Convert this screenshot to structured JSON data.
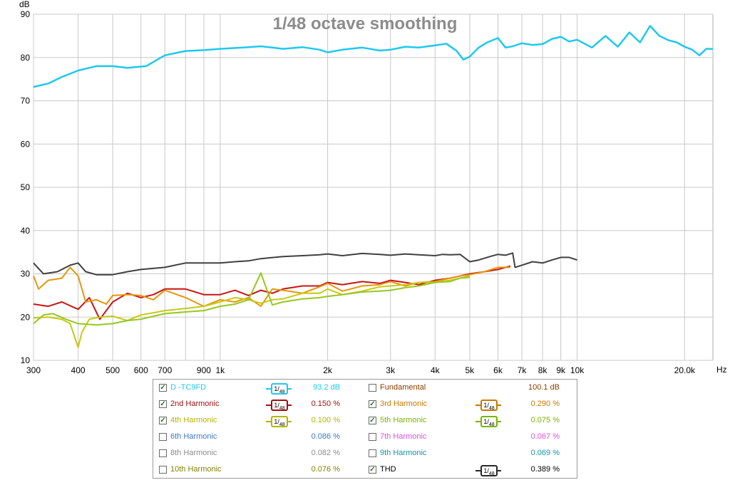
{
  "chart_data": {
    "type": "line",
    "title": "1/48 octave smoothing",
    "xlabel": "Hz",
    "ylabel": "dB",
    "xscale": "log",
    "xlim": [
      300,
      24000
    ],
    "ylim": [
      10,
      90
    ],
    "grid": true,
    "x_tick_labels": [
      "300",
      "400",
      "500",
      "600",
      "700",
      "900",
      "1k",
      "2k",
      "3k",
      "4k",
      "5k",
      "6k",
      "7k",
      "8k",
      "9k",
      "10k",
      "20.0k"
    ],
    "y_tick_labels": [
      "10",
      "20",
      "30",
      "40",
      "50",
      "60",
      "70",
      "80",
      "90"
    ],
    "series": [
      {
        "name": "D -TC9FD",
        "color": "#1ec8f0",
        "x": [
          300,
          330,
          360,
          400,
          450,
          500,
          550,
          620,
          700,
          800,
          900,
          1000,
          1100,
          1200,
          1300,
          1400,
          1500,
          1700,
          1900,
          2000,
          2200,
          2500,
          2800,
          3000,
          3300,
          3600,
          4000,
          4300,
          4600,
          4800,
          5000,
          5300,
          5600,
          6000,
          6300,
          6600,
          7000,
          7500,
          8000,
          8500,
          9000,
          9500,
          10000,
          11000,
          12000,
          13000,
          14000,
          15000,
          16000,
          17000,
          18000,
          19000,
          20000,
          21000,
          22000,
          23000,
          24000
        ],
        "values": [
          73.2,
          74,
          75.5,
          77,
          78,
          78,
          77.6,
          78,
          80.5,
          81.5,
          81.7,
          82,
          82.2,
          82.4,
          82.6,
          82.3,
          82,
          82.4,
          81.8,
          81.2,
          81.8,
          82.3,
          81.6,
          81.8,
          82.5,
          82.3,
          82.8,
          83.2,
          81.5,
          79.5,
          80.2,
          82.3,
          83.5,
          84.5,
          82.3,
          82.6,
          83.3,
          82.9,
          83.1,
          84.3,
          84.8,
          83.7,
          84.1,
          82.3,
          85,
          82.5,
          85.8,
          83.5,
          87.3,
          85,
          84,
          83.5,
          82.5,
          81.8,
          80.5,
          82,
          82
        ]
      },
      {
        "name": "THD",
        "color": "#404040",
        "x": [
          300,
          320,
          350,
          380,
          400,
          420,
          450,
          500,
          550,
          600,
          700,
          800,
          900,
          1000,
          1100,
          1200,
          1300,
          1500,
          1700,
          1900,
          2000,
          2200,
          2500,
          2800,
          3000,
          3300,
          3600,
          4000,
          4200,
          4400,
          4700,
          5000,
          5300,
          5700,
          6000,
          6300,
          6600,
          6700,
          7000,
          7500,
          8000,
          8500,
          9000,
          9500,
          10000
        ],
        "values": [
          32.5,
          30,
          30.5,
          32,
          32.5,
          30.5,
          29.8,
          29.8,
          30.5,
          31,
          31.5,
          32.5,
          32.5,
          32.5,
          32.8,
          33,
          33.5,
          34,
          34.2,
          34.4,
          34.6,
          34.2,
          34.7,
          34.5,
          34.3,
          34.6,
          34.4,
          34.2,
          34.5,
          34.4,
          34.5,
          32.8,
          33.2,
          34,
          34.5,
          34.3,
          34.8,
          31.5,
          32,
          32.8,
          32.5,
          33.2,
          33.8,
          33.8,
          33.2
        ]
      },
      {
        "name": "2nd Harmonic",
        "color": "#c81414",
        "x": [
          300,
          330,
          360,
          400,
          430,
          460,
          500,
          550,
          600,
          650,
          700,
          800,
          900,
          1000,
          1100,
          1200,
          1300,
          1400,
          1500,
          1700,
          1900,
          2000,
          2200,
          2500,
          2800,
          3000,
          3300,
          3600,
          4000,
          4400,
          4700,
          5000,
          5500,
          6000,
          6500
        ],
        "values": [
          23,
          22.5,
          23.5,
          21.8,
          24.5,
          19.5,
          23.5,
          25.5,
          24.5,
          25.2,
          26.5,
          26.5,
          25.2,
          25.2,
          26.2,
          25,
          26.2,
          25.5,
          26.5,
          27.2,
          27.2,
          28,
          27.5,
          28.2,
          27.8,
          28.5,
          28,
          27.5,
          28.5,
          29,
          29.5,
          30,
          30.5,
          31,
          31.8
        ]
      },
      {
        "name": "3rd Harmonic",
        "color": "#e6960a",
        "x": [
          300,
          310,
          330,
          360,
          380,
          400,
          420,
          450,
          480,
          500,
          550,
          600,
          650,
          700,
          800,
          900,
          1000,
          1100,
          1200,
          1300,
          1400,
          1500,
          1700,
          1900,
          2000,
          2200,
          2500,
          2800,
          3000,
          3300,
          3600,
          4000,
          4400,
          4700,
          5000,
          5500,
          6000,
          6500
        ],
        "values": [
          29.5,
          26.5,
          28.5,
          29,
          31.5,
          29.5,
          23.5,
          24,
          23,
          25,
          25.2,
          25,
          24,
          26.2,
          24.5,
          22.5,
          24,
          23.5,
          24.5,
          22.5,
          26.5,
          26.2,
          25.5,
          27,
          27.8,
          26,
          27.2,
          27.5,
          28.2,
          27.2,
          28,
          28.2,
          29,
          29.5,
          29.8,
          30.5,
          31.5,
          31.5
        ]
      },
      {
        "name": "4th Harmonic",
        "color": "#c8c814",
        "x": [
          300,
          330,
          360,
          380,
          400,
          410,
          430,
          460,
          500,
          550,
          600,
          650,
          700,
          800,
          900,
          1000,
          1100,
          1200,
          1300,
          1400,
          1500,
          1700,
          1900,
          2000,
          2200,
          2500,
          2800,
          3000,
          3300,
          3600,
          4000,
          4400,
          4700,
          5000
        ],
        "values": [
          19.8,
          20,
          19.5,
          18.5,
          13,
          16.5,
          19.5,
          20,
          20.2,
          19.2,
          20.5,
          21,
          21.5,
          22,
          22.5,
          23.5,
          24.5,
          24,
          23.2,
          24,
          24.2,
          25.5,
          25.5,
          26.5,
          25.2,
          26,
          27,
          27.2,
          27.5,
          28,
          28,
          28.5,
          29,
          29.5
        ]
      },
      {
        "name": "5th Harmonic",
        "color": "#96c81e",
        "x": [
          300,
          320,
          340,
          370,
          400,
          450,
          500,
          550,
          600,
          650,
          700,
          800,
          900,
          1000,
          1100,
          1200,
          1300,
          1400,
          1500,
          1700,
          1900,
          2000,
          2200,
          2500,
          2800,
          3000,
          3300,
          3600,
          4000,
          4400,
          4700,
          5000
        ],
        "values": [
          18.5,
          20.5,
          20.8,
          19.5,
          18.5,
          18.2,
          18.5,
          19.2,
          19.5,
          20.2,
          20.8,
          21.2,
          21.5,
          22.5,
          23,
          24,
          30.2,
          22.8,
          23.5,
          24.2,
          24.5,
          24.8,
          25.2,
          25.8,
          26,
          26.2,
          26.8,
          27.2,
          28,
          28.2,
          29,
          29.2
        ]
      }
    ]
  },
  "axis": {
    "y_unit": "dB",
    "x_unit": "Hz"
  },
  "legend": {
    "smoothing_label_num": "1/",
    "smoothing_label_den": "48",
    "items": [
      {
        "name": "D -TC9FD",
        "checked": true,
        "color": "#1ec8f0",
        "value": "93.2 dB",
        "smoothing": true,
        "col": 0,
        "row": 0
      },
      {
        "name": "Fundamental",
        "checked": false,
        "color": "#8c3c00",
        "value": "100.1 dB",
        "smoothing": false,
        "col": 1,
        "row": 0
      },
      {
        "name": "2nd Harmonic",
        "checked": true,
        "color": "#a01010",
        "value": "0.150 %",
        "smoothing": true,
        "col": 0,
        "row": 1
      },
      {
        "name": "3rd Harmonic",
        "checked": true,
        "color": "#c87800",
        "value": "0.290 %",
        "smoothing": true,
        "col": 1,
        "row": 1
      },
      {
        "name": "4th Harmonic",
        "checked": true,
        "color": "#b4b400",
        "value": "0.100 %",
        "smoothing": true,
        "col": 0,
        "row": 2
      },
      {
        "name": "5th Harmonic",
        "checked": true,
        "color": "#78b400",
        "value": "0.075 %",
        "smoothing": true,
        "col": 1,
        "row": 2
      },
      {
        "name": "6th Harmonic",
        "checked": false,
        "color": "#3c78c8",
        "value": "0.086 %",
        "smoothing": false,
        "col": 0,
        "row": 3
      },
      {
        "name": "7th Harmonic",
        "checked": false,
        "color": "#dc50dc",
        "value": "0.067 %",
        "smoothing": false,
        "col": 1,
        "row": 3
      },
      {
        "name": "8th Harmonic",
        "checked": false,
        "color": "#8c8c8c",
        "value": "0.082 %",
        "smoothing": false,
        "col": 0,
        "row": 4
      },
      {
        "name": "9th Harmonic",
        "checked": false,
        "color": "#1496a0",
        "value": "0.069 %",
        "smoothing": false,
        "col": 1,
        "row": 4
      },
      {
        "name": "10th Harmonic",
        "checked": false,
        "color": "#828200",
        "value": "0.076 %",
        "smoothing": false,
        "col": 0,
        "row": 5
      },
      {
        "name": "THD",
        "checked": true,
        "color": "#000000",
        "value": "0.389 %",
        "smoothing": true,
        "col": 1,
        "row": 5,
        "smooth_color": "#282828"
      }
    ]
  }
}
